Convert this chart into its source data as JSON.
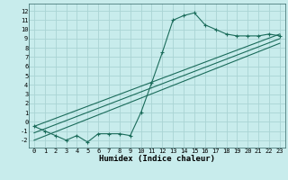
{
  "title": "",
  "xlabel": "Humidex (Indice chaleur)",
  "ylabel": "",
  "bg_color": "#c8ecec",
  "grid_color": "#aad4d4",
  "line_color": "#1a6b5a",
  "xlim": [
    -0.5,
    23.5
  ],
  "ylim": [
    -2.8,
    12.8
  ],
  "xticks": [
    0,
    1,
    2,
    3,
    4,
    5,
    6,
    7,
    8,
    9,
    10,
    11,
    12,
    13,
    14,
    15,
    16,
    17,
    18,
    19,
    20,
    21,
    22,
    23
  ],
  "yticks": [
    -2,
    -1,
    0,
    1,
    2,
    3,
    4,
    5,
    6,
    7,
    8,
    9,
    10,
    11,
    12
  ],
  "curve_x": [
    0,
    1,
    2,
    3,
    4,
    5,
    6,
    7,
    8,
    9,
    10,
    11,
    12,
    13,
    14,
    15,
    16,
    17,
    18,
    19,
    20,
    21,
    22,
    23
  ],
  "curve_y": [
    -0.5,
    -1.0,
    -1.5,
    -2.0,
    -1.5,
    -2.2,
    -1.3,
    -1.3,
    -1.3,
    -1.5,
    1.0,
    4.2,
    7.5,
    11.0,
    11.5,
    11.8,
    10.5,
    10.0,
    9.5,
    9.3,
    9.3,
    9.3,
    9.5,
    9.3
  ],
  "line1_x": [
    0,
    23
  ],
  "line1_y": [
    -0.5,
    9.5
  ],
  "line2_x": [
    0,
    23
  ],
  "line2_y": [
    -2.0,
    8.5
  ],
  "line3_x": [
    0,
    23
  ],
  "line3_y": [
    -1.2,
    9.0
  ],
  "tick_fontsize": 5,
  "xlabel_fontsize": 6.5,
  "xlabel_fontweight": "bold"
}
